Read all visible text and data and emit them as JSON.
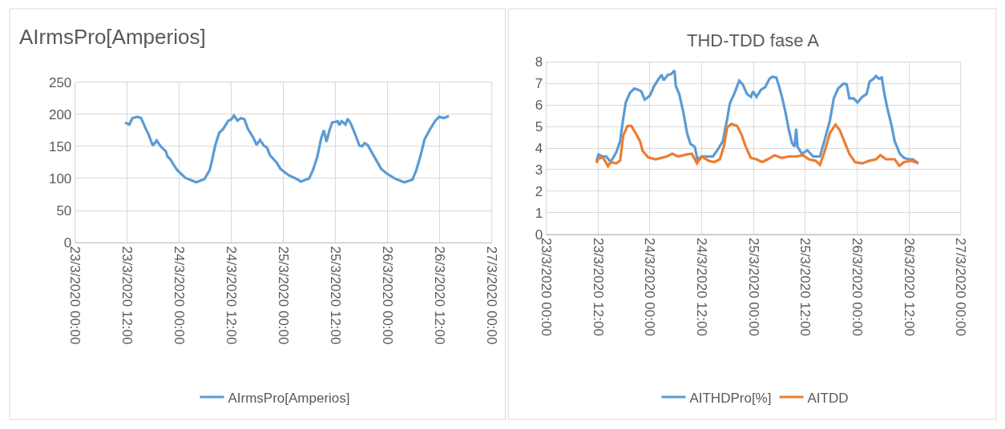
{
  "chart_data": [
    {
      "type": "line",
      "title": "AIrmsPro[Amperios]",
      "xlim": [
        "2020-03-23T00:00",
        "2020-03-27T00:00"
      ],
      "xticks": [
        {
          "value": "2020-03-23T00:00",
          "label": "23/3/2020 00:00"
        },
        {
          "value": "2020-03-23T12:00",
          "label": "23/3/2020 12:00"
        },
        {
          "value": "2020-03-24T00:00",
          "label": "24/3/2020 00:00"
        },
        {
          "value": "2020-03-24T12:00",
          "label": "24/3/2020 12:00"
        },
        {
          "value": "2020-03-25T00:00",
          "label": "25/3/2020 00:00"
        },
        {
          "value": "2020-03-25T12:00",
          "label": "25/3/2020 12:00"
        },
        {
          "value": "2020-03-26T00:00",
          "label": "26/3/2020 00:00"
        },
        {
          "value": "2020-03-26T12:00",
          "label": "26/3/2020 12:00"
        },
        {
          "value": "2020-03-27T00:00",
          "label": "27/3/2020 00:00"
        }
      ],
      "ylim": [
        0,
        250
      ],
      "yticks": [
        0,
        50,
        100,
        150,
        200,
        250
      ],
      "grid": true,
      "legend": "bottom",
      "series": [
        {
          "name": "AIrmsPro[Amperios]",
          "color": "#5b9bd5",
          "x": [
            "2020-03-23T11:30",
            "2020-03-23T12:30",
            "2020-03-23T13:12",
            "2020-03-23T14:24",
            "2020-03-23T15:12",
            "2020-03-23T16:18",
            "2020-03-23T16:54",
            "2020-03-23T17:54",
            "2020-03-23T18:48",
            "2020-03-23T19:42",
            "2020-03-23T20:54",
            "2020-03-23T21:18",
            "2020-03-23T21:54",
            "2020-03-23T23:30",
            "2020-03-24T01:24",
            "2020-03-24T03:54",
            "2020-03-24T05:48",
            "2020-03-24T07:00",
            "2020-03-24T07:36",
            "2020-03-24T08:18",
            "2020-03-24T09:12",
            "2020-03-24T10:06",
            "2020-03-24T11:18",
            "2020-03-24T12:00",
            "2020-03-24T12:36",
            "2020-03-24T13:24",
            "2020-03-24T14:12",
            "2020-03-24T15:00",
            "2020-03-24T15:48",
            "2020-03-24T17:06",
            "2020-03-24T17:48",
            "2020-03-24T18:36",
            "2020-03-24T19:30",
            "2020-03-24T20:12",
            "2020-03-24T20:54",
            "2020-03-24T22:24",
            "2020-03-24T23:18",
            "2020-03-25T01:12",
            "2020-03-25T03:06",
            "2020-03-25T04:00",
            "2020-03-25T05:54",
            "2020-03-25T06:48",
            "2020-03-25T07:48",
            "2020-03-25T08:42",
            "2020-03-25T09:18",
            "2020-03-25T09:54",
            "2020-03-25T10:36",
            "2020-03-25T11:12",
            "2020-03-25T12:30",
            "2020-03-25T12:54",
            "2020-03-25T13:24",
            "2020-03-25T14:18",
            "2020-03-25T14:48",
            "2020-03-25T15:36",
            "2020-03-25T16:30",
            "2020-03-25T17:30",
            "2020-03-25T18:06",
            "2020-03-25T18:42",
            "2020-03-25T19:24",
            "2020-03-25T20:54",
            "2020-03-25T22:30",
            "2020-03-25T23:42",
            "2020-03-26T01:36",
            "2020-03-26T03:48",
            "2020-03-26T05:42",
            "2020-03-26T06:36",
            "2020-03-26T07:36",
            "2020-03-26T08:30",
            "2020-03-26T09:48",
            "2020-03-26T11:00",
            "2020-03-26T11:54",
            "2020-03-26T12:54",
            "2020-03-26T14:06"
          ],
          "values": [
            187,
            184,
            194,
            196,
            194,
            177,
            169,
            151,
            159,
            150,
            142,
            134,
            130,
            113,
            101,
            94,
            99,
            113,
            130,
            152,
            171,
            177,
            190,
            192,
            198,
            190,
            194,
            192,
            177,
            163,
            152,
            160,
            151,
            148,
            136,
            125,
            115,
            105,
            99,
            95,
            100,
            113,
            134,
            163,
            175,
            157,
            175,
            187,
            189,
            183,
            189,
            184,
            193,
            184,
            169,
            151,
            150,
            155,
            152,
            134,
            115,
            108,
            100,
            94,
            98,
            113,
            136,
            161,
            177,
            190,
            196,
            194,
            197
          ]
        }
      ]
    },
    {
      "type": "line",
      "title": "THD-TDD fase A",
      "xlim": [
        "2020-03-23T00:00",
        "2020-03-27T00:00"
      ],
      "xticks": [
        {
          "value": "2020-03-23T00:00",
          "label": "23/3/2020 00:00"
        },
        {
          "value": "2020-03-23T12:00",
          "label": "23/3/2020 12:00"
        },
        {
          "value": "2020-03-24T00:00",
          "label": "24/3/2020 00:00"
        },
        {
          "value": "2020-03-24T12:00",
          "label": "24/3/2020 12:00"
        },
        {
          "value": "2020-03-25T00:00",
          "label": "25/3/2020 00:00"
        },
        {
          "value": "2020-03-25T12:00",
          "label": "25/3/2020 12:00"
        },
        {
          "value": "2020-03-26T00:00",
          "label": "26/3/2020 00:00"
        },
        {
          "value": "2020-03-26T12:00",
          "label": "26/3/2020 12:00"
        },
        {
          "value": "2020-03-27T00:00",
          "label": "27/3/2020 00:00"
        }
      ],
      "ylim": [
        0,
        8
      ],
      "yticks": [
        0,
        1,
        2,
        3,
        4,
        5,
        6,
        7,
        8
      ],
      "grid": true,
      "legend": "bottom",
      "series": [
        {
          "name": "AITHDPro[%]",
          "color": "#5b9bd5",
          "x": [
            "2020-03-23T11:36",
            "2020-03-23T12:06",
            "2020-03-23T13:00",
            "2020-03-23T13:54",
            "2020-03-23T14:54",
            "2020-03-23T16:12",
            "2020-03-23T17:06",
            "2020-03-23T17:48",
            "2020-03-23T18:24",
            "2020-03-23T19:24",
            "2020-03-23T20:24",
            "2020-03-23T21:24",
            "2020-03-23T22:00",
            "2020-03-23T22:48",
            "2020-03-24T00:00",
            "2020-03-24T01:00",
            "2020-03-24T01:54",
            "2020-03-24T02:42",
            "2020-03-24T03:12",
            "2020-03-24T04:12",
            "2020-03-24T04:54",
            "2020-03-24T05:42",
            "2020-03-24T06:00",
            "2020-03-24T06:48",
            "2020-03-24T07:48",
            "2020-03-24T08:36",
            "2020-03-24T09:24",
            "2020-03-24T10:24",
            "2020-03-24T11:00",
            "2020-03-24T12:00",
            "2020-03-24T13:18",
            "2020-03-24T14:36",
            "2020-03-24T15:54",
            "2020-03-24T16:54",
            "2020-03-24T17:54",
            "2020-03-24T18:30",
            "2020-03-24T19:30",
            "2020-03-24T20:42",
            "2020-03-24T21:30",
            "2020-03-24T22:30",
            "2020-03-24T23:24",
            "2020-03-24T23:54",
            "2020-03-25T00:42",
            "2020-03-25T01:42",
            "2020-03-25T02:42",
            "2020-03-25T03:42",
            "2020-03-25T04:18",
            "2020-03-25T05:18",
            "2020-03-25T05:54",
            "2020-03-25T06:36",
            "2020-03-25T07:24",
            "2020-03-25T08:12",
            "2020-03-25T08:54",
            "2020-03-25T09:30",
            "2020-03-25T09:54",
            "2020-03-25T10:12",
            "2020-03-25T11:12",
            "2020-03-25T12:30",
            "2020-03-25T13:48",
            "2020-03-25T15:24",
            "2020-03-25T16:24",
            "2020-03-25T17:42",
            "2020-03-25T18:36",
            "2020-03-25T19:36",
            "2020-03-25T20:54",
            "2020-03-25T21:36",
            "2020-03-25T22:12",
            "2020-03-25T23:12",
            "2020-03-26T00:06",
            "2020-03-26T01:12",
            "2020-03-26T02:12",
            "2020-03-26T02:54",
            "2020-03-26T03:48",
            "2020-03-26T04:24",
            "2020-03-26T05:06",
            "2020-03-26T05:42",
            "2020-03-26T06:24",
            "2020-03-26T07:00",
            "2020-03-26T08:00",
            "2020-03-26T08:42",
            "2020-03-26T09:54",
            "2020-03-26T10:54",
            "2020-03-26T11:54",
            "2020-03-26T12:54",
            "2020-03-26T14:12"
          ],
          "values": [
            3.39,
            3.7,
            3.61,
            3.61,
            3.35,
            3.8,
            4.32,
            5.35,
            6.12,
            6.57,
            6.77,
            6.7,
            6.64,
            6.25,
            6.44,
            6.89,
            7.18,
            7.41,
            7.15,
            7.41,
            7.44,
            7.6,
            6.89,
            6.51,
            5.61,
            4.7,
            4.19,
            4.06,
            3.48,
            3.61,
            3.61,
            3.61,
            3.99,
            4.32,
            5.35,
            6.06,
            6.51,
            7.13,
            6.96,
            6.51,
            6.38,
            6.64,
            6.38,
            6.7,
            6.83,
            7.22,
            7.31,
            7.28,
            6.89,
            6.38,
            5.67,
            4.83,
            4.25,
            4.06,
            4.9,
            4.06,
            3.74,
            3.9,
            3.61,
            3.61,
            4.32,
            5.28,
            6.31,
            6.77,
            7.0,
            6.96,
            6.31,
            6.31,
            6.12,
            6.38,
            6.51,
            7.09,
            7.22,
            7.35,
            7.22,
            7.28,
            6.44,
            5.86,
            5.03,
            4.32,
            3.74,
            3.54,
            3.48,
            3.48,
            3.29
          ]
        },
        {
          "name": "AITDD",
          "color": "#ed7d31",
          "x": [
            "2020-03-23T11:36",
            "2020-03-23T12:12",
            "2020-03-23T13:12",
            "2020-03-23T14:18",
            "2020-03-23T14:54",
            "2020-03-23T16:12",
            "2020-03-23T17:06",
            "2020-03-23T17:48",
            "2020-03-23T18:48",
            "2020-03-23T19:42",
            "2020-03-23T20:42",
            "2020-03-23T21:42",
            "2020-03-23T22:18",
            "2020-03-23T23:36",
            "2020-03-24T01:18",
            "2020-03-24T02:36",
            "2020-03-24T03:54",
            "2020-03-24T05:12",
            "2020-03-24T06:30",
            "2020-03-24T08:24",
            "2020-03-24T09:42",
            "2020-03-24T10:54",
            "2020-03-24T12:00",
            "2020-03-24T13:36",
            "2020-03-24T14:54",
            "2020-03-24T16:12",
            "2020-03-24T17:12",
            "2020-03-24T17:54",
            "2020-03-24T18:54",
            "2020-03-24T20:12",
            "2020-03-24T21:12",
            "2020-03-24T22:06",
            "2020-03-24T23:24",
            "2020-03-25T00:42",
            "2020-03-25T02:00",
            "2020-03-25T03:18",
            "2020-03-25T04:54",
            "2020-03-25T06:36",
            "2020-03-25T08:12",
            "2020-03-25T09:54",
            "2020-03-25T11:30",
            "2020-03-25T12:48",
            "2020-03-25T14:24",
            "2020-03-25T15:24",
            "2020-03-25T16:24",
            "2020-03-25T17:42",
            "2020-03-25T19:00",
            "2020-03-25T20:00",
            "2020-03-25T20:54",
            "2020-03-25T22:12",
            "2020-03-25T23:30",
            "2020-03-26T01:12",
            "2020-03-26T02:48",
            "2020-03-26T04:24",
            "2020-03-26T05:24",
            "2020-03-26T06:42",
            "2020-03-26T08:42",
            "2020-03-26T09:48",
            "2020-03-26T10:54",
            "2020-03-26T12:36",
            "2020-03-26T14:12"
          ],
          "values": [
            3.31,
            3.54,
            3.54,
            3.16,
            3.35,
            3.29,
            3.41,
            4.57,
            5.03,
            5.03,
            4.7,
            4.32,
            3.87,
            3.57,
            3.48,
            3.54,
            3.61,
            3.74,
            3.61,
            3.7,
            3.74,
            3.29,
            3.61,
            3.41,
            3.35,
            3.48,
            4.12,
            4.96,
            5.12,
            5.03,
            4.64,
            4.12,
            3.54,
            3.48,
            3.35,
            3.48,
            3.67,
            3.54,
            3.61,
            3.61,
            3.67,
            3.48,
            3.41,
            3.22,
            3.8,
            4.7,
            5.09,
            4.83,
            4.38,
            3.74,
            3.35,
            3.29,
            3.41,
            3.48,
            3.67,
            3.48,
            3.48,
            3.18,
            3.35,
            3.41,
            3.29
          ]
        }
      ]
    }
  ]
}
